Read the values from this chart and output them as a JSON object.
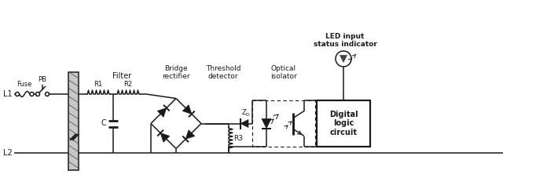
{
  "bg_color": "#ffffff",
  "lc": "#1a1a1a",
  "lw": 1.1,
  "fig_w": 6.96,
  "fig_h": 2.41,
  "dpi": 100,
  "L1y": 150,
  "L2y": 185,
  "labels": {
    "L1": "L1",
    "L2": "L2",
    "Fuse": "Fuse",
    "PB": "PB",
    "Filter": "Filter",
    "R1": "R1",
    "R2": "R2",
    "C": "C",
    "bridge": "Bridge\nrectifier",
    "threshold": "Threshold\ndetector",
    "optical": "Optical\nisolator",
    "led_label": "LED input\nstatus indicator",
    "digital": "Digital\nlogic\ncircuit",
    "ZD": "Z",
    "ZD_sub": "D",
    "R3": "R3"
  }
}
